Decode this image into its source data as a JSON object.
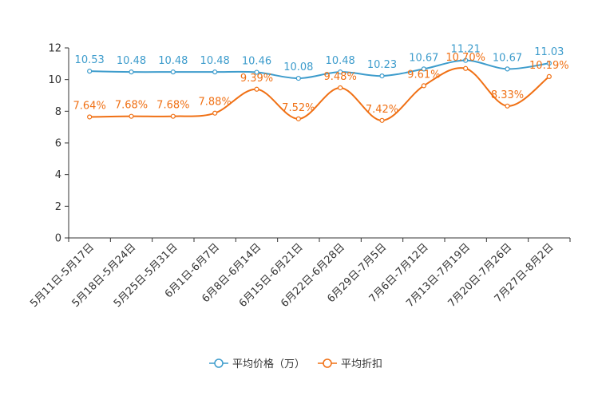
{
  "chart_data": {
    "type": "line",
    "categories": [
      "5月11日-5月17日",
      "5月18日-5月24日",
      "5月25日-5月31日",
      "6月1日-6月7日",
      "6月8日-6月14日",
      "6月15日-6月21日",
      "6月22日-6月28日",
      "6月29日-7月5日",
      "7月6日-7月12日",
      "7月13日-7月19日",
      "7月20日-7月26日",
      "7月27日-8月2日"
    ],
    "ylim": [
      0,
      12
    ],
    "yticks": [
      0,
      2,
      4,
      6,
      8,
      10,
      12
    ],
    "series": [
      {
        "name": "平均价格（万）",
        "color": "#3d9ccc",
        "values": [
          10.53,
          10.48,
          10.48,
          10.48,
          10.46,
          10.08,
          10.48,
          10.23,
          10.67,
          11.21,
          10.67,
          11.03
        ],
        "labels": [
          "10.53",
          "10.48",
          "10.48",
          "10.48",
          "10.46",
          "10.08",
          "10.48",
          "10.23",
          "10.67",
          "11.21",
          "10.67",
          "11.03"
        ]
      },
      {
        "name": "平均折扣",
        "color": "#f07014",
        "values": [
          7.64,
          7.68,
          7.68,
          7.88,
          9.39,
          7.52,
          9.48,
          7.42,
          9.61,
          10.7,
          8.33,
          10.19
        ],
        "labels": [
          "7.64%",
          "7.68%",
          "7.68%",
          "7.88%",
          "9.39%",
          "7.52%",
          "9.48%",
          "7.42%",
          "9.61%",
          "10.70%",
          "8.33%",
          "10.19%"
        ]
      }
    ],
    "legend_position": "bottom-center"
  }
}
